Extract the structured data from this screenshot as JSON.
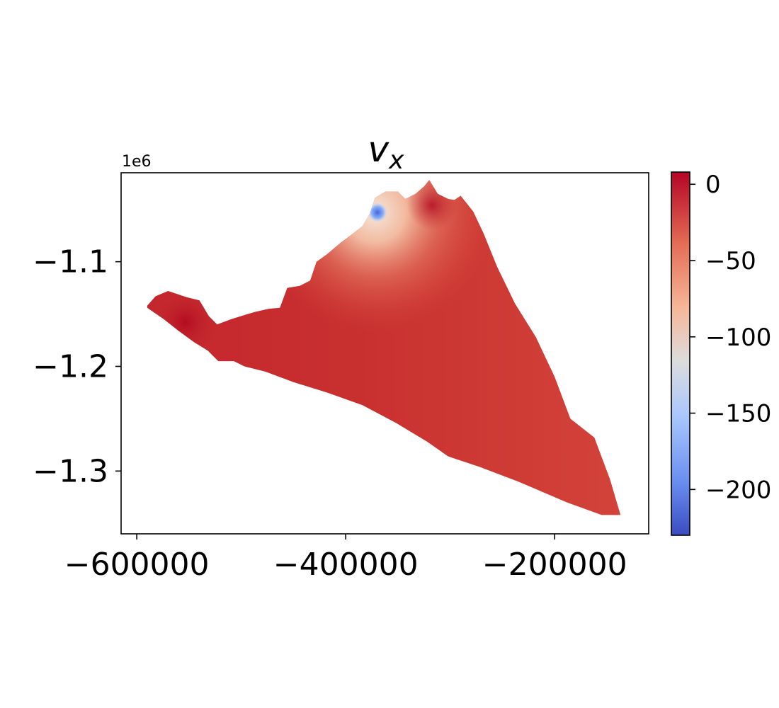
{
  "chart_data": {
    "type": "heatmap",
    "title_base": "v",
    "title_sub": "x",
    "offset_label": "1e6",
    "x_ticks": [
      {
        "value": -600000,
        "label": "−600000"
      },
      {
        "value": -400000,
        "label": "−400000"
      },
      {
        "value": -200000,
        "label": "−200000"
      }
    ],
    "y_ticks": [
      {
        "value": -1.1,
        "label": "−1.1"
      },
      {
        "value": -1.2,
        "label": "−1.2"
      },
      {
        "value": -1.3,
        "label": "−1.3"
      }
    ],
    "xlim": [
      -615000,
      -110000
    ],
    "ylim": [
      -1.36,
      -1.015
    ],
    "colorbar": {
      "colormap": "coolwarm",
      "range": [
        -230,
        8
      ],
      "ticks": [
        {
          "value": 0,
          "label": "0"
        },
        {
          "value": -50,
          "label": "−50"
        },
        {
          "value": -100,
          "label": "−100"
        },
        {
          "value": -150,
          "label": "−150"
        },
        {
          "value": -200,
          "label": "−200"
        }
      ]
    },
    "domain_outline": [
      [
        -590000,
        -1.142
      ],
      [
        -582000,
        -1.133
      ],
      [
        -570000,
        -1.128
      ],
      [
        -552000,
        -1.134
      ],
      [
        -540000,
        -1.137
      ],
      [
        -531000,
        -1.152
      ],
      [
        -523000,
        -1.16
      ],
      [
        -510000,
        -1.155
      ],
      [
        -497000,
        -1.151
      ],
      [
        -487000,
        -1.148
      ],
      [
        -474000,
        -1.145
      ],
      [
        -463000,
        -1.144
      ],
      [
        -456000,
        -1.125
      ],
      [
        -444000,
        -1.123
      ],
      [
        -434000,
        -1.118
      ],
      [
        -428000,
        -1.1
      ],
      [
        -418000,
        -1.093
      ],
      [
        -405000,
        -1.082
      ],
      [
        -393000,
        -1.073
      ],
      [
        -384000,
        -1.066
      ],
      [
        -377000,
        -1.054
      ],
      [
        -372000,
        -1.039
      ],
      [
        -362000,
        -1.033
      ],
      [
        -350000,
        -1.033
      ],
      [
        -343000,
        -1.04
      ],
      [
        -333000,
        -1.035
      ],
      [
        -325000,
        -1.028
      ],
      [
        -320000,
        -1.022
      ],
      [
        -312000,
        -1.035
      ],
      [
        -302000,
        -1.04
      ],
      [
        -296000,
        -1.041
      ],
      [
        -290000,
        -1.037
      ],
      [
        -278000,
        -1.052
      ],
      [
        -268000,
        -1.073
      ],
      [
        -255000,
        -1.105
      ],
      [
        -238000,
        -1.14
      ],
      [
        -218000,
        -1.172
      ],
      [
        -200000,
        -1.21
      ],
      [
        -185000,
        -1.25
      ],
      [
        -162000,
        -1.268
      ],
      [
        -147000,
        -1.308
      ],
      [
        -137000,
        -1.342
      ],
      [
        -155000,
        -1.342
      ],
      [
        -188000,
        -1.33
      ],
      [
        -235000,
        -1.31
      ],
      [
        -272000,
        -1.296
      ],
      [
        -302000,
        -1.286
      ],
      [
        -322000,
        -1.272
      ],
      [
        -352000,
        -1.254
      ],
      [
        -384000,
        -1.237
      ],
      [
        -418000,
        -1.225
      ],
      [
        -450000,
        -1.215
      ],
      [
        -477000,
        -1.205
      ],
      [
        -497000,
        -1.2
      ],
      [
        -507000,
        -1.195
      ],
      [
        -522000,
        -1.195
      ],
      [
        -532000,
        -1.185
      ],
      [
        -545000,
        -1.177
      ],
      [
        -560000,
        -1.166
      ],
      [
        -574000,
        -1.155
      ],
      [
        -590000,
        -1.144
      ]
    ],
    "field_values": [
      {
        "x": -360000,
        "y": -1.062,
        "v": -200
      },
      {
        "x": -352000,
        "y": -1.056,
        "v": -130
      },
      {
        "x": -340000,
        "y": -1.062,
        "v": -85
      },
      {
        "x": -330000,
        "y": -1.075,
        "v": -58
      },
      {
        "x": -310000,
        "y": -1.04,
        "v": -5
      },
      {
        "x": -300000,
        "y": -1.1,
        "v": -30
      },
      {
        "x": -270000,
        "y": -1.18,
        "v": -22
      },
      {
        "x": -400000,
        "y": -1.16,
        "v": -10
      },
      {
        "x": -550000,
        "y": -1.15,
        "v": 3
      },
      {
        "x": -200000,
        "y": -1.3,
        "v": -18
      }
    ]
  }
}
